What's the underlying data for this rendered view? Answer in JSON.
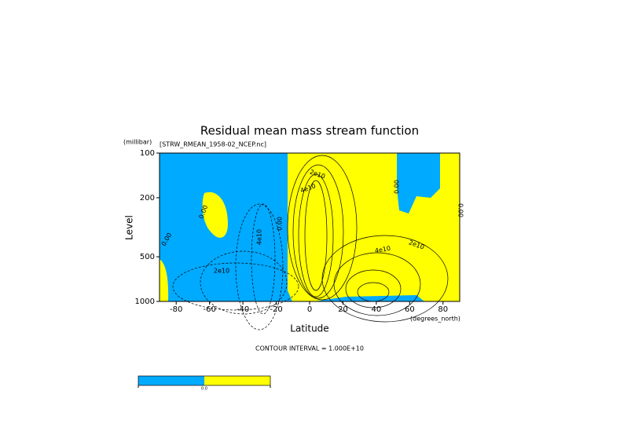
{
  "chart_data": {
    "type": "contour",
    "title": "Residual mean mass stream function",
    "subtitle": "[STRW_RMEAN_1958-02_NCEP.nc]",
    "y_unit": "(millibar)",
    "y_label": "Level",
    "x_label": "Latitude",
    "x_unit": "(degrees_north)",
    "note": "CONTOUR INTERVAL = 1.000E+10",
    "xlim": [
      -90,
      90
    ],
    "xticks": [
      -80,
      -60,
      -40,
      -20,
      0,
      20,
      40,
      60,
      80
    ],
    "ylim": [
      1000,
      100
    ],
    "yticks": [
      100,
      200,
      500,
      1000
    ],
    "log_y": true,
    "fill_colors": [
      "#00aaff",
      "#ffff00"
    ],
    "colorbar_labels": [
      "0.0"
    ],
    "contour_labels": [
      "0.00",
      "2e10",
      "4e10",
      "0.00",
      "0.00",
      "2e10",
      "4e10",
      "2e10",
      "4e10",
      "0.00",
      "0.00"
    ]
  }
}
